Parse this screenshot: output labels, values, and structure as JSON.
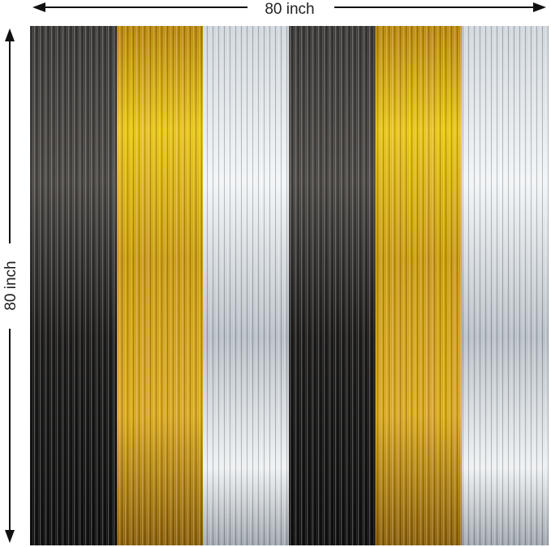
{
  "dimensions": {
    "width": "80 inch",
    "height": "80 inch"
  }
}
